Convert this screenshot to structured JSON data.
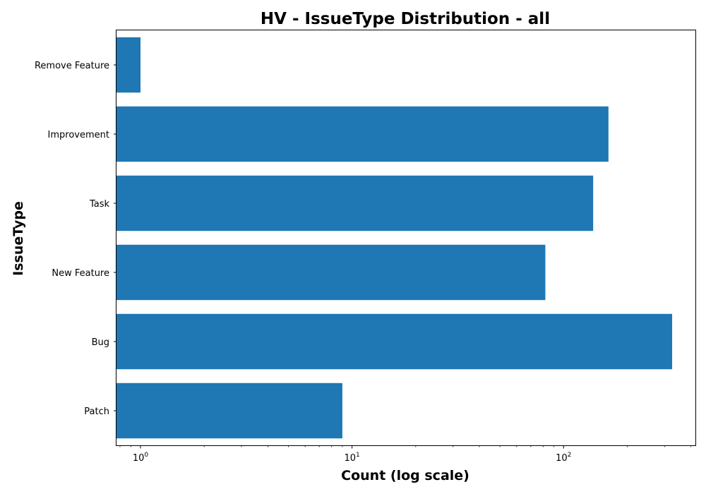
{
  "chart_data": {
    "type": "bar",
    "orientation": "horizontal",
    "title": "HV - IssueType Distribution - all",
    "xlabel": "Count (log scale)",
    "ylabel": "IssueType",
    "x_scale": "log",
    "xlim": [
      0.77,
      420
    ],
    "x_ticks": [
      {
        "value": 1,
        "base": "10",
        "exp": "0"
      },
      {
        "value": 10,
        "base": "10",
        "exp": "1"
      },
      {
        "value": 100,
        "base": "10",
        "exp": "2"
      }
    ],
    "categories": [
      "Remove Feature",
      "Improvement",
      "Task",
      "New Feature",
      "Bug",
      "Patch"
    ],
    "values": [
      1,
      163,
      138,
      82,
      326,
      9
    ],
    "bar_color": "#1f77b4",
    "grid": false
  }
}
